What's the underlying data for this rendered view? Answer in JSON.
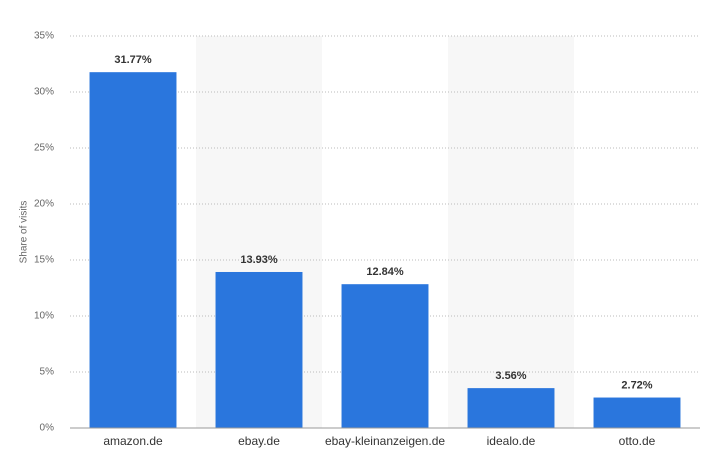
{
  "chart_data": {
    "type": "bar",
    "y_axis_label": "Share of visits",
    "categories": [
      "amazon.de",
      "ebay.de",
      "ebay-kleinanzeigen.de",
      "idealo.de",
      "otto.de"
    ],
    "values": [
      31.77,
      13.93,
      12.84,
      3.56,
      2.72
    ],
    "value_labels": [
      "31.77%",
      "13.93%",
      "12.84%",
      "3.56%",
      "2.72%"
    ],
    "color": "#2a76dd",
    "ylim": [
      0,
      35
    ],
    "yticks": [
      {
        "value": 0,
        "label": "0%"
      },
      {
        "value": 5,
        "label": "5%"
      },
      {
        "value": 10,
        "label": "10%"
      },
      {
        "value": 15,
        "label": "15%"
      },
      {
        "value": 20,
        "label": "20%"
      },
      {
        "value": 25,
        "label": "25%"
      },
      {
        "value": 30,
        "label": "30%"
      },
      {
        "value": 35,
        "label": "35%"
      }
    ],
    "grid": true
  }
}
